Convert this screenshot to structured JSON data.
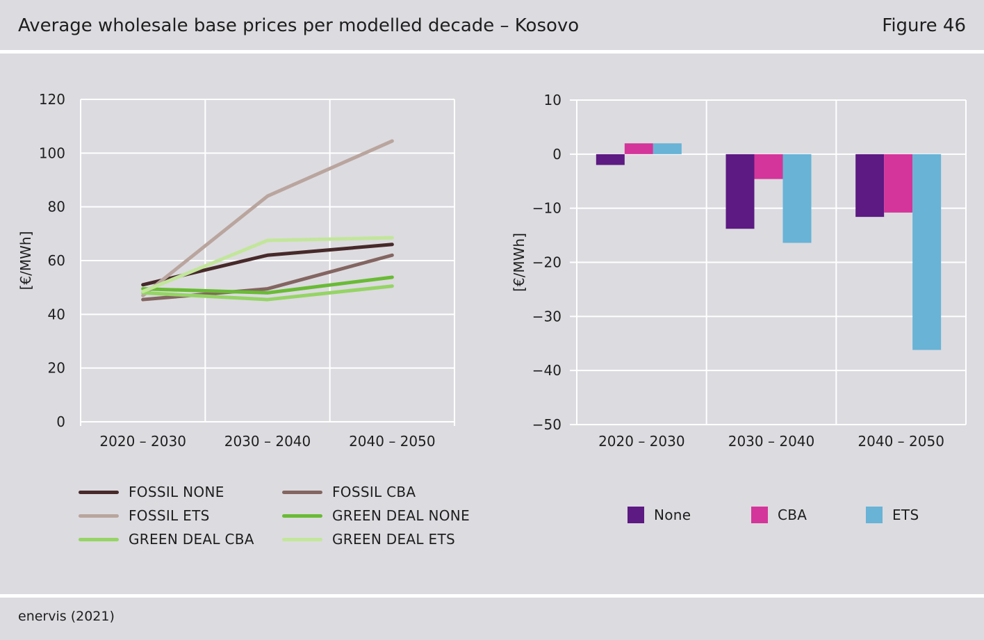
{
  "header": {
    "title": "Average wholesale base prices per modelled decade – Kosovo",
    "figure": "Figure 46"
  },
  "footer": {
    "source": "enervis (2021)"
  },
  "chart_data": [
    {
      "type": "line",
      "ylabel": "[€/MWh]",
      "ylim": [
        0,
        120
      ],
      "yticks": [
        "120",
        "100",
        "80",
        "60",
        "40",
        "20",
        "0"
      ],
      "categories": [
        "2020 – 2030",
        "2030 – 2040",
        "2040 – 2050"
      ],
      "grid": true,
      "legend_position": "bottom",
      "series": [
        {
          "name": "FOSSIL NONE",
          "color": "#47292a",
          "values": [
            51,
            62,
            66
          ]
        },
        {
          "name": "FOSSIL CBA",
          "color": "#836561",
          "values": [
            45.5,
            49.5,
            62
          ]
        },
        {
          "name": "FOSSIL ETS",
          "color": "#b9a59e",
          "values": [
            47,
            84,
            104.5
          ]
        },
        {
          "name": "GREEN DEAL NONE",
          "color": "#69bb35",
          "values": [
            49.5,
            48,
            53.8
          ]
        },
        {
          "name": "GREEN DEAL CBA",
          "color": "#95d465",
          "values": [
            48,
            45.5,
            50.5
          ]
        },
        {
          "name": "GREEN DEAL ETS",
          "color": "#c2e69a",
          "values": [
            48.5,
            67.5,
            68.5
          ]
        }
      ]
    },
    {
      "type": "bar",
      "ylabel": "[€/MWh]",
      "ylim": [
        -50,
        10
      ],
      "yticks": [
        "10",
        "0",
        "−10",
        "−20",
        "−30",
        "−40",
        "−50"
      ],
      "categories": [
        "2020 – 2030",
        "2030 – 2040",
        "2040 – 2050"
      ],
      "grid": true,
      "legend_position": "bottom",
      "series": [
        {
          "name": "None",
          "color": "#5c1a82",
          "values": [
            -2,
            -13.8,
            -11.6
          ]
        },
        {
          "name": "CBA",
          "color": "#d4359a",
          "values": [
            2,
            -4.6,
            -10.8
          ]
        },
        {
          "name": "ETS",
          "color": "#68b3d6",
          "values": [
            2,
            -16.4,
            -36.2
          ]
        }
      ]
    }
  ]
}
